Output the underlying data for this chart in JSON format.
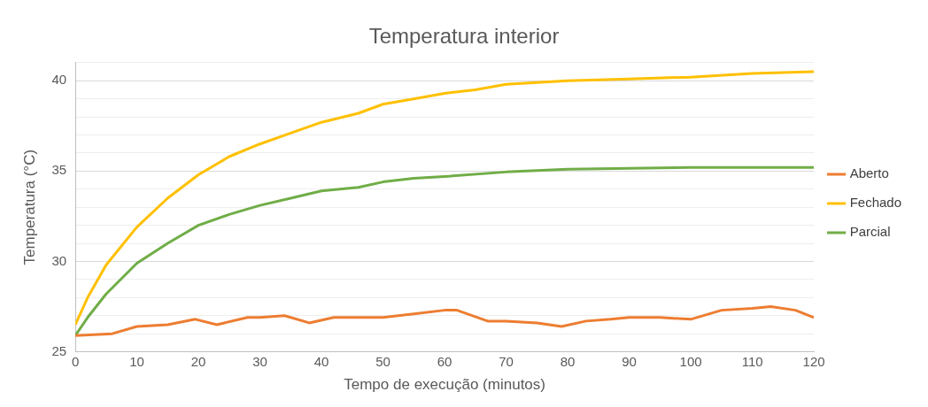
{
  "chart_data": {
    "type": "line",
    "title": "Temperatura interior",
    "xlabel": "Tempo de execução (minutos)",
    "ylabel": "Temperatura (°C)",
    "xlim": [
      0,
      120
    ],
    "xticks": [
      0,
      10,
      20,
      30,
      40,
      50,
      60,
      70,
      80,
      90,
      100,
      110,
      120
    ],
    "ylim": [
      25,
      41
    ],
    "yticks": [
      25,
      {
        "value": 26,
        "label": null
      },
      {
        "value": 27,
        "label": null
      },
      {
        "value": 28,
        "label": null
      },
      {
        "value": 29,
        "label": null
      },
      30,
      {
        "value": 31,
        "label": null
      },
      {
        "value": 32,
        "label": null
      },
      {
        "value": 33,
        "label": null
      },
      {
        "value": 34,
        "label": null
      },
      35,
      {
        "value": 36,
        "label": null
      },
      {
        "value": 37,
        "label": null
      },
      {
        "value": 38,
        "label": null
      },
      {
        "value": 39,
        "label": null
      },
      40,
      {
        "value": 41,
        "label": null
      }
    ],
    "grid": "y",
    "legend": "right",
    "marker": "none",
    "line_style": "solid",
    "series": [
      {
        "name": "Aberto",
        "color": "#ed7d31",
        "x": [
          0,
          3,
          6,
          10,
          15,
          19.5,
          23,
          28,
          30,
          34,
          38,
          42,
          46,
          50,
          55,
          60,
          62,
          67,
          70,
          75,
          79,
          83,
          87,
          90,
          95,
          100,
          105,
          110,
          113,
          117,
          120
        ],
        "values": [
          25.9,
          25.95,
          26.0,
          26.4,
          26.5,
          26.8,
          26.5,
          26.9,
          26.9,
          27.0,
          26.6,
          26.9,
          26.9,
          26.9,
          27.1,
          27.3,
          27.3,
          26.7,
          26.7,
          26.6,
          26.4,
          26.7,
          26.8,
          26.9,
          26.9,
          26.8,
          27.3,
          27.4,
          27.5,
          27.3,
          26.9
        ]
      },
      {
        "name": "Fechado",
        "color": "#ffc000",
        "x": [
          0,
          2,
          5,
          10,
          15,
          20,
          25,
          30,
          35,
          40,
          46,
          50,
          55,
          60,
          65,
          70,
          80,
          90,
          100,
          110,
          120
        ],
        "values": [
          26.5,
          28.0,
          29.8,
          31.9,
          33.5,
          34.8,
          35.8,
          36.5,
          37.1,
          37.7,
          38.2,
          38.7,
          39.0,
          39.3,
          39.5,
          39.8,
          40.0,
          40.1,
          40.2,
          40.4,
          40.5
        ]
      },
      {
        "name": "Parcial",
        "color": "#70ad47",
        "x": [
          0,
          2,
          5,
          10,
          15,
          20,
          25,
          30,
          35,
          40,
          46,
          50,
          55,
          60,
          70,
          80,
          90,
          100,
          110,
          120
        ],
        "values": [
          25.9,
          26.9,
          28.2,
          29.9,
          31.0,
          32.0,
          32.6,
          33.1,
          33.5,
          33.9,
          34.1,
          34.4,
          34.6,
          34.7,
          34.95,
          35.1,
          35.15,
          35.2,
          35.2,
          35.2
        ]
      }
    ]
  }
}
